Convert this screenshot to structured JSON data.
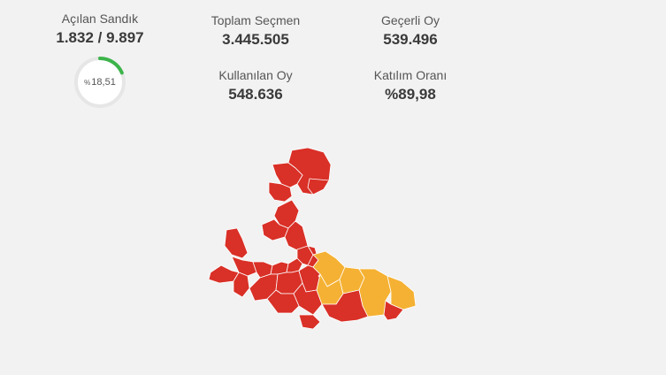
{
  "stats": {
    "sandik": {
      "label": "Açılan Sandık",
      "value": "1.832 / 9.897"
    },
    "toplam": {
      "label": "Toplam Seçmen",
      "value": "3.445.505"
    },
    "gecerli": {
      "label": "Geçerli Oy",
      "value": "539.496"
    },
    "kullanilan": {
      "label": "Kullanılan Oy",
      "value": "548.636"
    },
    "katilim": {
      "label": "Katılım Oranı",
      "value": "%89,98"
    }
  },
  "progress": {
    "percent_sign": "%",
    "value_label": "18,51",
    "fraction": 0.1851,
    "track_color": "#e6e6e6",
    "fill_color": "#3cb44b"
  },
  "map": {
    "colors": {
      "red": "#d93027",
      "orange": "#f5b133"
    }
  }
}
